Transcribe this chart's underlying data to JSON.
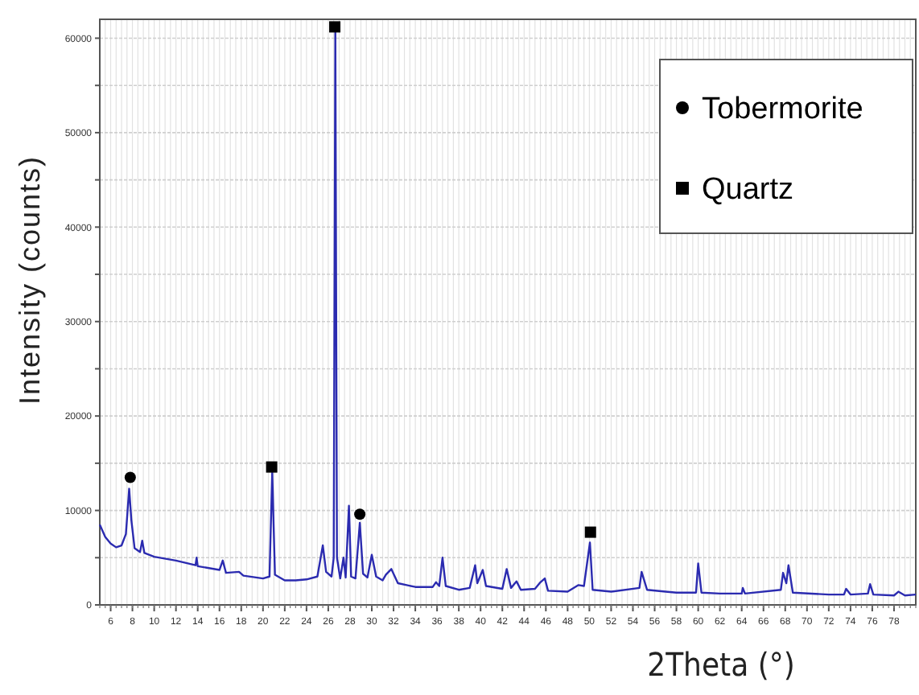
{
  "chart_data": {
    "type": "line",
    "xlabel": "2Theta (°)",
    "ylabel": "Intensity (counts)",
    "xlim": [
      5,
      80
    ],
    "xticks": [
      6,
      8,
      10,
      12,
      14,
      16,
      18,
      20,
      22,
      24,
      26,
      28,
      30,
      32,
      34,
      36,
      38,
      40,
      42,
      44,
      46,
      48,
      50,
      52,
      54,
      56,
      58,
      60,
      62,
      64,
      66,
      68,
      70,
      72,
      74,
      76,
      78
    ],
    "ylim": [
      0,
      62000
    ],
    "yticks": [
      0,
      {
        "value": 5000,
        "label": null
      },
      10000,
      {
        "value": 15000,
        "label": null
      },
      20000,
      {
        "value": 25000,
        "label": null
      },
      30000,
      {
        "value": 35000,
        "label": null
      },
      40000,
      {
        "value": 45000,
        "label": null
      },
      50000,
      {
        "value": 55000,
        "label": null
      },
      60000
    ],
    "grid": true,
    "legend": "top right",
    "line_style": "solid",
    "series": [
      {
        "color": "#2b2bb0",
        "marker": "none",
        "x": [
          5,
          5.5,
          6,
          6.5,
          7,
          7.4,
          7.7,
          7.9,
          8.2,
          8.7,
          8.9,
          9.1,
          10,
          12,
          13.8,
          13.9,
          14,
          16,
          16.3,
          16.6,
          17.8,
          18.2,
          20,
          20.6,
          20.85,
          21.1,
          22,
          23,
          24,
          25,
          25.5,
          25.8,
          26.3,
          26.5,
          26.65,
          26.8,
          27.1,
          27.4,
          27.6,
          27.9,
          28.1,
          28.5,
          28.9,
          29.2,
          29.6,
          30,
          30.4,
          31,
          31.3,
          31.8,
          32.4,
          34,
          35.6,
          35.9,
          36.2,
          36.5,
          36.8,
          38,
          39,
          39.5,
          39.7,
          40.2,
          40.5,
          42,
          42.4,
          42.8,
          43.3,
          43.7,
          45,
          45.5,
          45.9,
          46.2,
          48,
          49,
          49.5,
          50.05,
          50.3,
          52,
          54.6,
          54.8,
          55.3,
          57,
          58,
          59.8,
          60,
          60.3,
          62,
          64,
          64.1,
          64.3,
          67.6,
          67.8,
          68.1,
          68.3,
          68.7,
          72,
          73.4,
          73.6,
          74,
          75.6,
          75.8,
          76.1,
          78,
          78.4,
          79,
          80
        ],
        "values": [
          8500,
          7200,
          6500,
          6100,
          6300,
          7500,
          12300,
          9000,
          6000,
          5600,
          6800,
          5500,
          5100,
          4700,
          4200,
          5000,
          4100,
          3700,
          4700,
          3400,
          3500,
          3100,
          2800,
          3000,
          14000,
          3200,
          2600,
          2600,
          2700,
          3000,
          6300,
          3500,
          3000,
          5000,
          60800,
          5000,
          2800,
          5000,
          2900,
          10500,
          3000,
          2800,
          8700,
          3300,
          2900,
          5300,
          3000,
          2600,
          3200,
          3800,
          2300,
          1900,
          1900,
          2400,
          2000,
          5000,
          2000,
          1600,
          1800,
          4200,
          2300,
          3700,
          2000,
          1700,
          3800,
          1800,
          2500,
          1600,
          1700,
          2400,
          2800,
          1500,
          1400,
          2100,
          2000,
          6600,
          1600,
          1400,
          1800,
          3500,
          1600,
          1400,
          1300,
          1300,
          4400,
          1300,
          1200,
          1200,
          1800,
          1200,
          1600,
          3400,
          2300,
          4200,
          1300,
          1100,
          1100,
          1700,
          1100,
          1200,
          2200,
          1100,
          1000,
          1400,
          1000,
          1100
        ]
      },
      {
        "type": "scatter",
        "name": "Tobermorite",
        "color": "#000000",
        "marker": "circle",
        "x": [
          7.8,
          28.9
        ],
        "values": [
          13500,
          9600
        ]
      },
      {
        "type": "scatter",
        "name": "Quartz",
        "color": "#000000",
        "marker": "square",
        "x": [
          20.8,
          26.6,
          50.1
        ],
        "values": [
          14600,
          61200,
          7700
        ]
      }
    ]
  }
}
